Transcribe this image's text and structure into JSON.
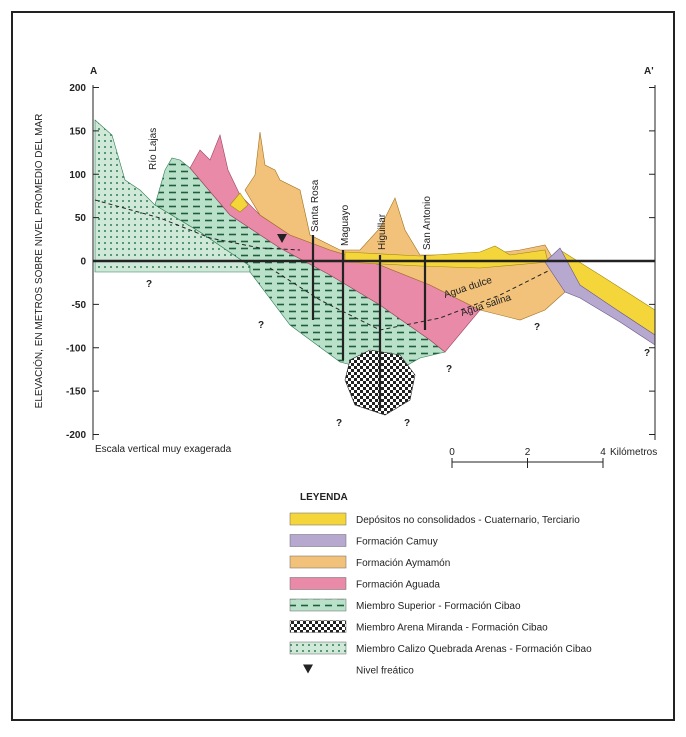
{
  "header": {
    "left": "A",
    "right": "A'"
  },
  "axis": {
    "label": "ELEVACIÓN, EN METROS SOBRE NIVEL PROMEDIO DEL MAR",
    "ticks": [
      200,
      150,
      100,
      50,
      0,
      -50,
      -100,
      -150,
      -200
    ]
  },
  "wells": [
    "Río Lajas",
    "Santa Rosa",
    "Maguayo",
    "Higuillar",
    "San Antonio"
  ],
  "annotations": {
    "fresh": "Agua dulce",
    "salt": "Agua salina",
    "unknown": "?"
  },
  "note": "Escala vertical muy exagerada",
  "scale": {
    "ticks": [
      0,
      2,
      4
    ],
    "unit": "Kilómetros"
  },
  "legend": {
    "title": "LEYENDA",
    "items": [
      "Depósitos no consolidados - Cuaternario, Terciario",
      "Formación Camuy",
      "Formación Aymamón",
      "Formación Aguada",
      "Miembro Superior - Formación Cibao",
      "Miembro Arena Miranda - Formación Cibao",
      "Miembro Calizo Quebrada Arenas - Formación Cibao",
      "Nivel freático"
    ]
  }
}
